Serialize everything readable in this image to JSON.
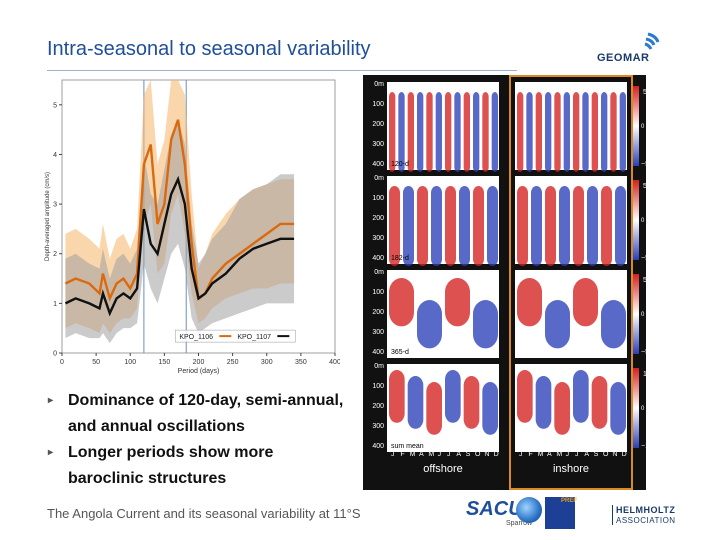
{
  "slide": {
    "title": "Intra-seasonal to seasonal variability",
    "footer": "The Angola Current and its seasonal variability at 11°S"
  },
  "logos": {
    "geomar": "GEOMAR",
    "sacus": "SACUS",
    "sacus_sub": "Sparrow",
    "pref": "PREF",
    "helmholtz": "HELMHOLTZ",
    "helmholtz_sub": "ASSOCIATION"
  },
  "bullets": [
    "Dominance of 120-day, semi-annual, and annual oscillations",
    "Longer periods show more baroclinic structures"
  ],
  "chart_data": {
    "type": "line",
    "xlabel": "Period (days)",
    "ylabel": "Depth-averaged amplitude (cm/s)",
    "xlim": [
      0,
      400
    ],
    "ylim": [
      0,
      5.5
    ],
    "xticks": [
      0,
      50,
      100,
      150,
      200,
      250,
      300,
      350,
      400
    ],
    "yticks": [
      0,
      1,
      2,
      3,
      4,
      5
    ],
    "vlines": [
      120,
      182
    ],
    "series": [
      {
        "name": "KPO_1106",
        "color": "#d96a10",
        "band": "#f5b56a",
        "x": [
          5,
          20,
          40,
          55,
          60,
          70,
          80,
          90,
          100,
          110,
          120,
          130,
          140,
          150,
          160,
          170,
          180,
          190,
          200,
          210,
          220,
          240,
          260,
          280,
          300,
          320,
          340
        ],
        "y": [
          1.4,
          1.5,
          1.4,
          1.2,
          1.6,
          1.1,
          1.4,
          1.5,
          1.3,
          1.6,
          3.8,
          4.2,
          2.6,
          3.0,
          4.3,
          4.7,
          3.8,
          2.2,
          1.1,
          1.2,
          1.5,
          1.8,
          2.0,
          2.2,
          2.4,
          2.6,
          2.6
        ],
        "lo": [
          0.5,
          0.6,
          0.5,
          0.4,
          0.6,
          0.4,
          0.6,
          0.7,
          0.7,
          0.9,
          2.6,
          3.0,
          1.6,
          1.8,
          2.8,
          3.2,
          2.4,
          1.2,
          0.6,
          0.7,
          0.9,
          1.1,
          1.2,
          1.3,
          1.3,
          1.4,
          1.4
        ],
        "hi": [
          2.4,
          2.5,
          2.3,
          2.1,
          2.6,
          1.9,
          2.3,
          2.4,
          2.1,
          2.5,
          5.2,
          5.5,
          3.8,
          4.3,
          5.5,
          5.5,
          5.2,
          3.2,
          1.7,
          2.0,
          2.4,
          2.8,
          3.1,
          3.3,
          3.4,
          3.5,
          3.5
        ]
      },
      {
        "name": "KPO_1107",
        "color": "#111111",
        "band": "#a0a0a0",
        "x": [
          5,
          20,
          40,
          55,
          60,
          70,
          80,
          90,
          100,
          110,
          120,
          130,
          140,
          150,
          160,
          170,
          180,
          190,
          200,
          210,
          220,
          240,
          260,
          280,
          300,
          320,
          340
        ],
        "y": [
          1.0,
          1.1,
          1.0,
          0.9,
          1.2,
          0.8,
          1.1,
          1.2,
          1.1,
          1.3,
          2.9,
          2.2,
          2.0,
          2.6,
          3.2,
          3.5,
          3.0,
          1.7,
          1.1,
          1.2,
          1.4,
          1.6,
          1.9,
          2.1,
          2.2,
          2.3,
          2.3
        ],
        "lo": [
          0.3,
          0.4,
          0.3,
          0.3,
          0.4,
          0.2,
          0.4,
          0.5,
          0.5,
          0.6,
          1.8,
          1.3,
          1.0,
          1.5,
          2.0,
          2.2,
          1.7,
          0.7,
          0.4,
          0.5,
          0.6,
          0.7,
          0.8,
          0.9,
          1.0,
          1.0,
          1.0
        ],
        "hi": [
          1.9,
          2.0,
          1.8,
          1.7,
          2.1,
          1.5,
          1.9,
          2.0,
          1.8,
          2.1,
          4.0,
          3.2,
          3.0,
          3.7,
          4.4,
          4.7,
          4.2,
          2.6,
          1.8,
          2.0,
          2.3,
          2.6,
          3.1,
          3.3,
          3.4,
          3.6,
          3.6
        ]
      }
    ]
  },
  "hovmoller": {
    "columns": [
      "offshore",
      "inshore"
    ],
    "months": [
      "J",
      "F",
      "M",
      "A",
      "M",
      "J",
      "J",
      "A",
      "S",
      "O",
      "N",
      "D"
    ],
    "depth_ticks": [
      "0m",
      "100",
      "200",
      "300",
      "400"
    ],
    "rows": [
      {
        "label": "120-d",
        "bands": 6,
        "scale_top": "5",
        "scale_mid": "0 cm/s",
        "scale_bot": "−5"
      },
      {
        "label": "182-d",
        "bands": 4,
        "scale_top": "5",
        "scale_mid": "0 cm/s",
        "scale_bot": "−5"
      },
      {
        "label": "365-d",
        "bands": 2,
        "scale_top": "5",
        "scale_mid": "0 cm/s",
        "scale_bot": "−5"
      },
      {
        "label": "sum mean",
        "bands": 3,
        "scale_top": "10",
        "scale_mid": "0 cm/s",
        "scale_bot": "−10"
      }
    ],
    "colors": {
      "red": "#d42020",
      "blue": "#2a3fb8",
      "white": "#ffffff",
      "frame": "#d98a20"
    }
  }
}
